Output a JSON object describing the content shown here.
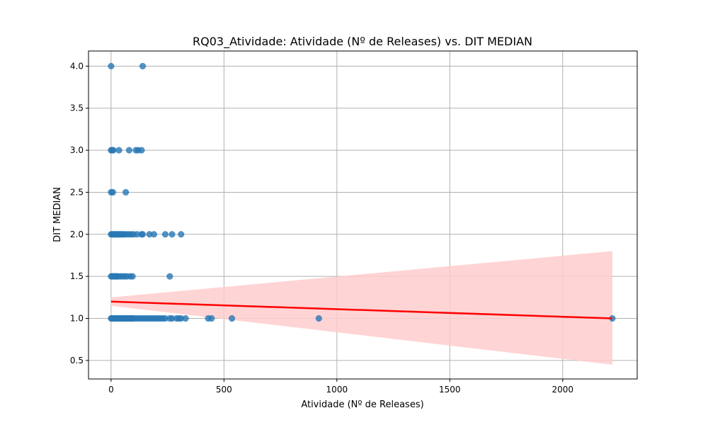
{
  "chart_data": {
    "type": "scatter",
    "title": "RQ03_Atividade: Atividade (Nº de Releases) vs. DIT MEDIAN",
    "xlabel": "Atividade (Nº de Releases)",
    "ylabel": "DIT MEDIAN",
    "xlim": [
      -100,
      2330
    ],
    "ylim": [
      0.28,
      4.18
    ],
    "xticks": [
      0,
      500,
      1000,
      1500,
      2000
    ],
    "yticks": [
      0.5,
      1.0,
      1.5,
      2.0,
      2.5,
      3.0,
      3.5,
      4.0
    ],
    "xtick_labels": [
      "0",
      "500",
      "1000",
      "1500",
      "2000"
    ],
    "ytick_labels": [
      "0.5",
      "1.0",
      "1.5",
      "2.0",
      "2.5",
      "3.0",
      "3.5",
      "4.0"
    ],
    "grid": true,
    "colors": {
      "points": "#2878b5",
      "regression": "#ff0000",
      "ci_band": "#ffcccc"
    },
    "series": [
      {
        "type": "scatter",
        "points": [
          [
            0,
            4.0
          ],
          [
            140,
            4.0
          ],
          [
            0,
            3.0
          ],
          [
            5,
            3.0
          ],
          [
            10,
            3.0
          ],
          [
            35,
            3.0
          ],
          [
            80,
            3.0
          ],
          [
            110,
            3.0
          ],
          [
            120,
            3.0
          ],
          [
            135,
            3.0
          ],
          [
            0,
            2.5
          ],
          [
            8,
            2.5
          ],
          [
            65,
            2.5
          ],
          [
            0,
            2.0
          ],
          [
            4,
            2.0
          ],
          [
            8,
            2.0
          ],
          [
            12,
            2.0
          ],
          [
            16,
            2.0
          ],
          [
            20,
            2.0
          ],
          [
            25,
            2.0
          ],
          [
            30,
            2.0
          ],
          [
            35,
            2.0
          ],
          [
            40,
            2.0
          ],
          [
            45,
            2.0
          ],
          [
            50,
            2.0
          ],
          [
            55,
            2.0
          ],
          [
            60,
            2.0
          ],
          [
            70,
            2.0
          ],
          [
            80,
            2.0
          ],
          [
            90,
            2.0
          ],
          [
            100,
            2.0
          ],
          [
            115,
            2.0
          ],
          [
            135,
            2.0
          ],
          [
            140,
            2.0
          ],
          [
            170,
            2.0
          ],
          [
            190,
            2.0
          ],
          [
            240,
            2.0
          ],
          [
            270,
            2.0
          ],
          [
            310,
            2.0
          ],
          [
            0,
            1.5
          ],
          [
            5,
            1.5
          ],
          [
            10,
            1.5
          ],
          [
            15,
            1.5
          ],
          [
            20,
            1.5
          ],
          [
            25,
            1.5
          ],
          [
            30,
            1.5
          ],
          [
            40,
            1.5
          ],
          [
            50,
            1.5
          ],
          [
            60,
            1.5
          ],
          [
            70,
            1.5
          ],
          [
            85,
            1.5
          ],
          [
            95,
            1.5
          ],
          [
            260,
            1.5
          ],
          [
            0,
            1.0
          ],
          [
            3,
            1.0
          ],
          [
            6,
            1.0
          ],
          [
            10,
            1.0
          ],
          [
            15,
            1.0
          ],
          [
            20,
            1.0
          ],
          [
            25,
            1.0
          ],
          [
            30,
            1.0
          ],
          [
            35,
            1.0
          ],
          [
            40,
            1.0
          ],
          [
            45,
            1.0
          ],
          [
            50,
            1.0
          ],
          [
            55,
            1.0
          ],
          [
            60,
            1.0
          ],
          [
            65,
            1.0
          ],
          [
            70,
            1.0
          ],
          [
            75,
            1.0
          ],
          [
            80,
            1.0
          ],
          [
            85,
            1.0
          ],
          [
            90,
            1.0
          ],
          [
            95,
            1.0
          ],
          [
            100,
            1.0
          ],
          [
            110,
            1.0
          ],
          [
            120,
            1.0
          ],
          [
            130,
            1.0
          ],
          [
            140,
            1.0
          ],
          [
            150,
            1.0
          ],
          [
            160,
            1.0
          ],
          [
            170,
            1.0
          ],
          [
            180,
            1.0
          ],
          [
            190,
            1.0
          ],
          [
            200,
            1.0
          ],
          [
            210,
            1.0
          ],
          [
            220,
            1.0
          ],
          [
            230,
            1.0
          ],
          [
            240,
            1.0
          ],
          [
            260,
            1.0
          ],
          [
            270,
            1.0
          ],
          [
            290,
            1.0
          ],
          [
            300,
            1.0
          ],
          [
            310,
            1.0
          ],
          [
            330,
            1.0
          ],
          [
            430,
            1.0
          ],
          [
            445,
            1.0
          ],
          [
            535,
            1.0
          ],
          [
            920,
            1.0
          ],
          [
            2220,
            1.0
          ]
        ]
      },
      {
        "type": "regression_line",
        "x": [
          0,
          2220
        ],
        "y": [
          1.2,
          1.0
        ]
      },
      {
        "type": "confidence_band",
        "x": [
          0,
          2220
        ],
        "upper": [
          1.25,
          1.8
        ],
        "lower": [
          1.15,
          0.45
        ]
      }
    ]
  }
}
